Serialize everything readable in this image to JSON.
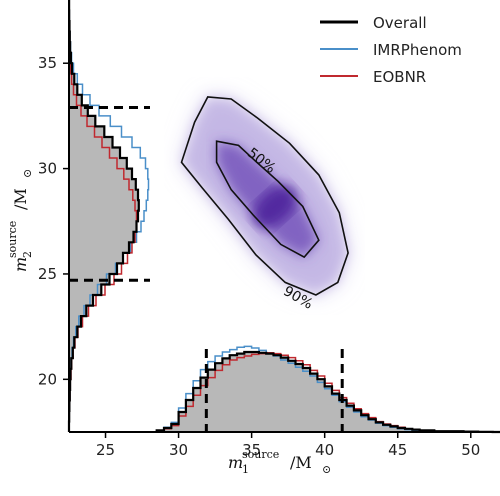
{
  "chart_data": {
    "type": "corner",
    "title": "",
    "xlabel_main": "m",
    "xlabel_sub": "1",
    "xlabel_sup": "source",
    "xlabel_unit": "/M",
    "xlabel_unit_sub": "⊙",
    "ylabel_main": "m",
    "ylabel_sub": "2",
    "ylabel_sup": "source",
    "ylabel_unit": "/M",
    "ylabel_unit_sub": "⊙",
    "x_ticks": [
      "25",
      "30",
      "35",
      "40",
      "45",
      "50"
    ],
    "x_tick_values": [
      25,
      30,
      35,
      40,
      45,
      50
    ],
    "y_ticks": [
      "20",
      "25",
      "30",
      "35"
    ],
    "y_tick_values": [
      20,
      25,
      30,
      35
    ],
    "xlim": [
      22.5,
      52
    ],
    "ylim": [
      17.5,
      38
    ],
    "legend": {
      "placement": "top-right",
      "entries": [
        {
          "name": "Overall",
          "color": "#000000"
        },
        {
          "name": "IMRPhenom",
          "color": "#4a8fc9"
        },
        {
          "name": "EOBNR",
          "color": "#c0292f"
        }
      ]
    },
    "contour_labels": [
      "50%",
      "90%"
    ],
    "fill_color": "#b8b8b8",
    "density_color": "#4b1d9a",
    "m1_interval_90": [
      31.9,
      41.2
    ],
    "m2_interval_90": [
      24.7,
      32.9
    ],
    "m1_hist": {
      "bins": [
        28.5,
        29,
        29.5,
        30,
        30.5,
        31,
        31.5,
        32,
        32.5,
        33,
        33.5,
        34,
        34.5,
        35,
        35.5,
        36,
        36.5,
        37,
        37.5,
        38,
        38.5,
        39,
        39.5,
        40,
        40.5,
        41,
        41.5,
        42,
        42.5,
        43,
        43.5,
        44,
        44.5,
        45,
        45.5,
        46,
        46.5,
        47,
        47.5,
        48,
        48.5,
        49,
        49.5,
        50,
        50.5,
        51,
        51.5,
        52
      ],
      "overall": [
        0.02,
        0.05,
        0.1,
        0.25,
        0.4,
        0.55,
        0.68,
        0.78,
        0.86,
        0.92,
        0.96,
        0.98,
        1.0,
        1.0,
        0.99,
        0.98,
        0.96,
        0.93,
        0.89,
        0.85,
        0.8,
        0.73,
        0.66,
        0.57,
        0.48,
        0.4,
        0.33,
        0.27,
        0.21,
        0.16,
        0.12,
        0.09,
        0.07,
        0.05,
        0.04,
        0.03,
        0.02,
        0.02,
        0.01,
        0.01,
        0.01,
        0.01,
        0.005,
        0.005,
        0.003,
        0.002,
        0.0
      ],
      "imrphenom": [
        0.02,
        0.06,
        0.12,
        0.3,
        0.48,
        0.64,
        0.78,
        0.88,
        0.95,
        1.0,
        1.03,
        1.06,
        1.07,
        1.05,
        1.02,
        0.99,
        0.95,
        0.9,
        0.86,
        0.81,
        0.76,
        0.7,
        0.62,
        0.54,
        0.46,
        0.38,
        0.31,
        0.25,
        0.19,
        0.15,
        0.11,
        0.08,
        0.06,
        0.04,
        0.03,
        0.02,
        0.02,
        0.01,
        0.01,
        0.01,
        0.005,
        0.005,
        0.003,
        0.002,
        0.001,
        0.0,
        0.0
      ],
      "eobnr": [
        0.01,
        0.04,
        0.08,
        0.2,
        0.32,
        0.46,
        0.58,
        0.68,
        0.77,
        0.84,
        0.9,
        0.93,
        0.95,
        0.97,
        0.98,
        0.99,
        0.98,
        0.96,
        0.93,
        0.89,
        0.84,
        0.77,
        0.7,
        0.61,
        0.52,
        0.43,
        0.36,
        0.29,
        0.23,
        0.18,
        0.13,
        0.1,
        0.08,
        0.06,
        0.04,
        0.03,
        0.02,
        0.02,
        0.01,
        0.01,
        0.01,
        0.005,
        0.005,
        0.003,
        0.002,
        0.001,
        0.0
      ]
    },
    "m2_hist": {
      "bins": [
        17.5,
        18,
        18.5,
        19,
        19.5,
        20,
        20.5,
        21,
        21.5,
        22,
        22.5,
        23,
        23.5,
        24,
        24.5,
        25,
        25.5,
        26,
        26.5,
        27,
        27.5,
        28,
        28.5,
        29,
        29.5,
        30,
        30.5,
        31,
        31.5,
        32,
        32.5,
        33,
        33.5,
        34,
        34.5,
        35,
        35.5,
        36,
        36.5,
        37,
        37.5,
        38
      ],
      "overall": [
        0.0,
        0.003,
        0.005,
        0.01,
        0.015,
        0.02,
        0.03,
        0.05,
        0.07,
        0.11,
        0.16,
        0.23,
        0.32,
        0.43,
        0.54,
        0.64,
        0.72,
        0.8,
        0.86,
        0.9,
        0.92,
        0.93,
        0.92,
        0.89,
        0.84,
        0.77,
        0.68,
        0.58,
        0.47,
        0.35,
        0.25,
        0.17,
        0.11,
        0.07,
        0.04,
        0.025,
        0.015,
        0.01,
        0.006,
        0.003,
        0.001
      ],
      "imrphenom": [
        0.0,
        0.002,
        0.004,
        0.008,
        0.012,
        0.018,
        0.026,
        0.04,
        0.06,
        0.09,
        0.13,
        0.2,
        0.28,
        0.38,
        0.5,
        0.62,
        0.72,
        0.82,
        0.9,
        0.96,
        1.0,
        1.03,
        1.05,
        1.06,
        1.05,
        1.02,
        0.95,
        0.84,
        0.7,
        0.55,
        0.4,
        0.28,
        0.18,
        0.11,
        0.06,
        0.035,
        0.02,
        0.012,
        0.007,
        0.004,
        0.002
      ],
      "eobnr": [
        0.0,
        0.003,
        0.006,
        0.012,
        0.018,
        0.026,
        0.036,
        0.055,
        0.08,
        0.12,
        0.18,
        0.26,
        0.36,
        0.48,
        0.6,
        0.7,
        0.78,
        0.84,
        0.88,
        0.9,
        0.9,
        0.88,
        0.85,
        0.8,
        0.73,
        0.64,
        0.54,
        0.44,
        0.34,
        0.24,
        0.16,
        0.1,
        0.06,
        0.035,
        0.02,
        0.012,
        0.007,
        0.004,
        0.002,
        0.001,
        0.0
      ]
    },
    "contour_50": [
      [
        32.6,
        31.3
      ],
      [
        34.1,
        31.1
      ],
      [
        35.2,
        30.4
      ],
      [
        36.8,
        29.4
      ],
      [
        38.5,
        28.2
      ],
      [
        39.6,
        26.6
      ],
      [
        38.6,
        25.8
      ],
      [
        37.0,
        26.4
      ],
      [
        35.1,
        27.8
      ],
      [
        33.6,
        29.0
      ],
      [
        32.6,
        30.3
      ]
    ],
    "contour_90": [
      [
        32.0,
        33.4
      ],
      [
        33.6,
        33.3
      ],
      [
        35.4,
        32.4
      ],
      [
        37.6,
        31.2
      ],
      [
        39.6,
        29.7
      ],
      [
        41.0,
        27.9
      ],
      [
        41.6,
        26.0
      ],
      [
        40.9,
        24.6
      ],
      [
        39.4,
        24.0
      ],
      [
        37.3,
        24.6
      ],
      [
        35.3,
        25.9
      ],
      [
        33.4,
        27.6
      ],
      [
        31.6,
        29.1
      ],
      [
        30.2,
        30.3
      ],
      [
        31.1,
        32.2
      ]
    ]
  }
}
